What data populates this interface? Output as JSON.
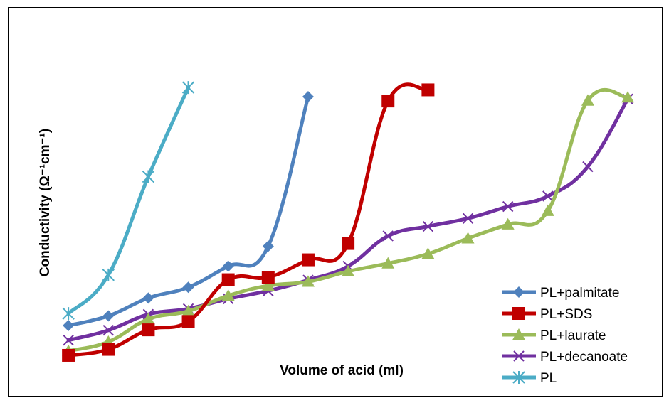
{
  "chart_data": {
    "type": "line",
    "title": "",
    "xlabel": "Volume of acid (ml)",
    "ylabel": "Conductivity (Ω⁻¹cm⁻¹)",
    "x": [
      1,
      2,
      3,
      4,
      5,
      6,
      7,
      8,
      9,
      10,
      11,
      12,
      13,
      14,
      15
    ],
    "xlim": [
      0,
      15.8
    ],
    "ylim": [
      0,
      10
    ],
    "grid": false,
    "legend_position": "bottom-right",
    "series": [
      {
        "name": "PL+palmitate",
        "color": "#4F81BD",
        "marker": "diamond",
        "x": [
          1,
          2,
          3,
          4,
          5,
          6,
          7
        ],
        "values": [
          2.09,
          2.33,
          2.78,
          3.05,
          3.58,
          4.08,
          7.84
        ]
      },
      {
        "name": "PL+SDS",
        "color": "#C00000",
        "marker": "square",
        "x": [
          1,
          2,
          3,
          4,
          5,
          6,
          7,
          8,
          9,
          10
        ],
        "values": [
          1.34,
          1.49,
          1.98,
          2.19,
          3.24,
          3.3,
          3.74,
          4.15,
          7.73,
          8.01
        ]
      },
      {
        "name": "PL+laurate",
        "color": "#9BBB59",
        "marker": "triangle",
        "x": [
          1,
          2,
          3,
          4,
          5,
          6,
          7,
          8,
          9,
          10,
          11,
          12,
          13,
          14,
          15
        ],
        "values": [
          1.45,
          1.68,
          2.25,
          2.45,
          2.84,
          3.09,
          3.19,
          3.45,
          3.65,
          3.89,
          4.28,
          4.63,
          4.97,
          7.74,
          7.82
        ]
      },
      {
        "name": "PL+decanoate",
        "color": "#7030A0",
        "marker": "x",
        "x": [
          1,
          2,
          3,
          4,
          5,
          6,
          7,
          8,
          9,
          10,
          11,
          12,
          13,
          14,
          15
        ],
        "values": [
          1.72,
          1.97,
          2.37,
          2.51,
          2.76,
          2.96,
          3.23,
          3.58,
          4.34,
          4.58,
          4.78,
          5.08,
          5.34,
          6.08,
          7.78
        ]
      },
      {
        "name": "PL",
        "color": "#4BACC6",
        "marker": "asterisk",
        "x": [
          1,
          2,
          3,
          4
        ],
        "values": [
          2.39,
          3.36,
          5.83,
          8.07
        ]
      }
    ]
  }
}
